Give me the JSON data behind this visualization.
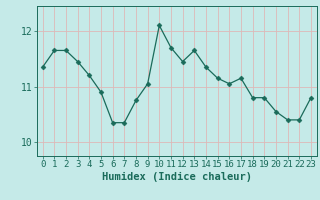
{
  "x": [
    0,
    1,
    2,
    3,
    4,
    5,
    6,
    7,
    8,
    9,
    10,
    11,
    12,
    13,
    14,
    15,
    16,
    17,
    18,
    19,
    20,
    21,
    22,
    23
  ],
  "y": [
    11.35,
    11.65,
    11.65,
    11.45,
    11.2,
    10.9,
    10.35,
    10.35,
    10.75,
    11.05,
    12.1,
    11.7,
    11.45,
    11.65,
    11.35,
    11.15,
    11.05,
    11.15,
    10.8,
    10.8,
    10.55,
    10.4,
    10.4,
    10.8
  ],
  "line_color": "#1a6b5a",
  "marker": "D",
  "marker_size": 2.5,
  "bg_color": "#c5eae8",
  "grid_color": "#ddb8b8",
  "ylabel_ticks": [
    10,
    11,
    12
  ],
  "xlabel": "Humidex (Indice chaleur)",
  "xlim": [
    -0.5,
    23.5
  ],
  "ylim": [
    9.75,
    12.45
  ],
  "tick_fontsize": 6.5,
  "label_fontsize": 7.5
}
